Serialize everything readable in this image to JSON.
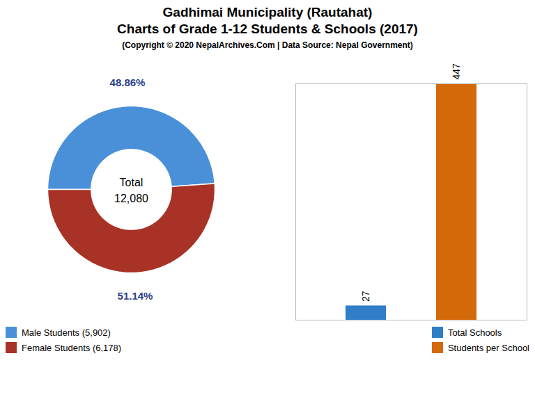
{
  "title": "Gadhimai Municipality (Rautahat)\nCharts of Grade 1-12 Students & Schools (2017)",
  "subtitle": "(Copyright © 2020 NepalArchives.Com | Data Source: Nepal Government)",
  "chart_data": [
    {
      "type": "pie",
      "categories": [
        "Male Students (5,902)",
        "Female Students (6,178)"
      ],
      "values": [
        48.86,
        51.14
      ],
      "value_labels": [
        "48.86%",
        "51.14%"
      ],
      "data_labels": true,
      "colors": [
        "#4a90d9",
        "#a93226"
      ],
      "annotations": [
        "Total",
        "12,080"
      ],
      "legend": "lower left"
    },
    {
      "type": "bar",
      "categories": [
        "Total Schools",
        "Students per School"
      ],
      "values": [
        27,
        447
      ],
      "colors": [
        "#2f7ec7",
        "#d4690a"
      ],
      "ylim": [
        0,
        447
      ],
      "data_labels": true,
      "tick_labels": false,
      "grid": false,
      "legend": "lower right"
    }
  ]
}
